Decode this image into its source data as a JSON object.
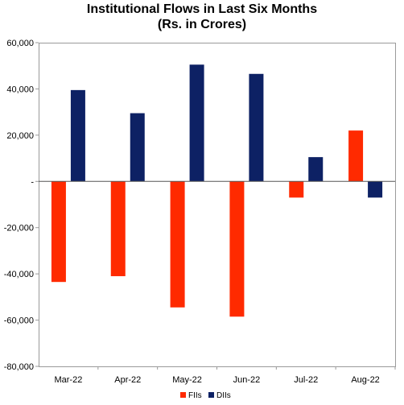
{
  "chart_data": {
    "type": "bar",
    "title": [
      "Institutional Flows in Last Six Months",
      "(Rs. in Crores)"
    ],
    "categories": [
      "Mar-22",
      "Apr-22",
      "May-22",
      "Jun-22",
      "Jul-22",
      "Aug-22"
    ],
    "series": [
      {
        "name": "FIIs",
        "color": "#ff2a00",
        "values": [
          -43500,
          -41000,
          -54500,
          -58500,
          -7000,
          22000
        ]
      },
      {
        "name": "DIIs",
        "color": "#0d2164",
        "values": [
          39500,
          29500,
          50500,
          46500,
          10500,
          -7000
        ]
      }
    ],
    "ylim": [
      -80000,
      60000
    ],
    "yticks": [
      60000,
      40000,
      20000,
      0,
      -20000,
      -40000,
      -60000,
      -80000
    ],
    "ytick_labels": [
      "60,000",
      "40,000",
      "20,000",
      "-",
      "-20,000",
      "-40,000",
      "-60,000",
      "-80,000"
    ],
    "grid": false,
    "legend": "bottom-center"
  }
}
